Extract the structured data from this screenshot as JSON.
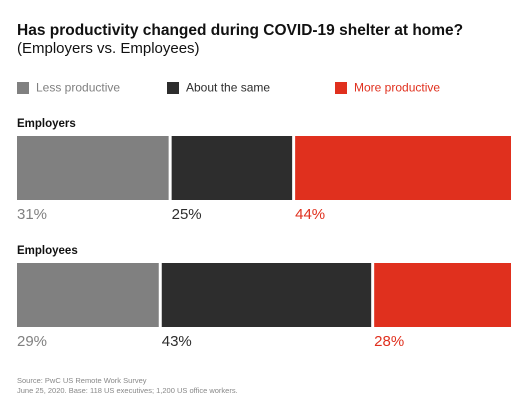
{
  "chart_data": {
    "type": "bar",
    "orientation": "horizontal",
    "stacked": true,
    "title": "Has productivity changed during COVID-19 shelter at home?",
    "subtitle": "(Employers vs. Employees)",
    "categories": [
      "Employers",
      "Employees"
    ],
    "series": [
      {
        "name": "Less productive",
        "color": "#808080",
        "values": [
          31,
          29
        ],
        "value_labels": [
          "31%",
          "29%"
        ]
      },
      {
        "name": "About the same",
        "color": "#2d2d2d",
        "values": [
          25,
          43
        ],
        "value_labels": [
          "25%",
          "43%"
        ]
      },
      {
        "name": "More productive",
        "color": "#e0301e",
        "values": [
          44,
          28
        ],
        "value_labels": [
          "44%",
          "28%"
        ]
      }
    ],
    "legend": "top",
    "source": "Source: PwC US Remote Work Survey",
    "note": "June 25, 2020. Base: 118 US executives; 1,200 US office workers."
  }
}
